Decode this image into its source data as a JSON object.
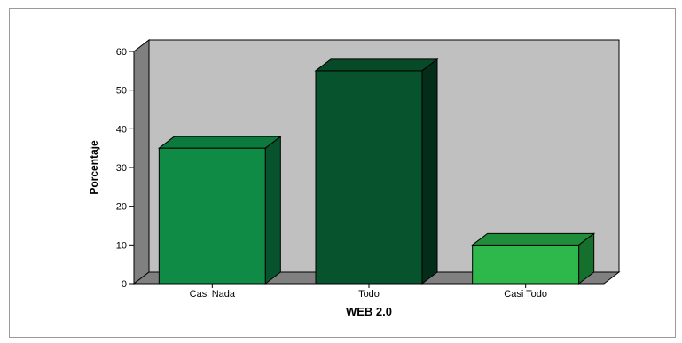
{
  "chart_data": {
    "type": "bar",
    "style": "3d",
    "categories": [
      "Casi Nada",
      "Todo",
      "Casi Todo"
    ],
    "values": [
      35,
      55,
      10
    ],
    "xlabel": "WEB 2.0",
    "ylabel": "Porcentaje",
    "ylim": [
      0,
      60
    ],
    "yticks": [
      0,
      10,
      20,
      30,
      40,
      50,
      60
    ],
    "grid": false,
    "legend": "none",
    "colors": {
      "bars": [
        "#0F8B46",
        "#07532D",
        "#2EB84C"
      ],
      "bar_tops": [
        "#0D7A3D",
        "#064A27",
        "#1E8E3A"
      ],
      "bar_sides": [
        "#07532D",
        "#032D19",
        "#16702D"
      ],
      "back_wall": "#C0C0C0",
      "side_wall": "#808080",
      "floor": "#808080",
      "page_background": "#FFFFFF",
      "frame_border": "#9A9A9A"
    }
  }
}
